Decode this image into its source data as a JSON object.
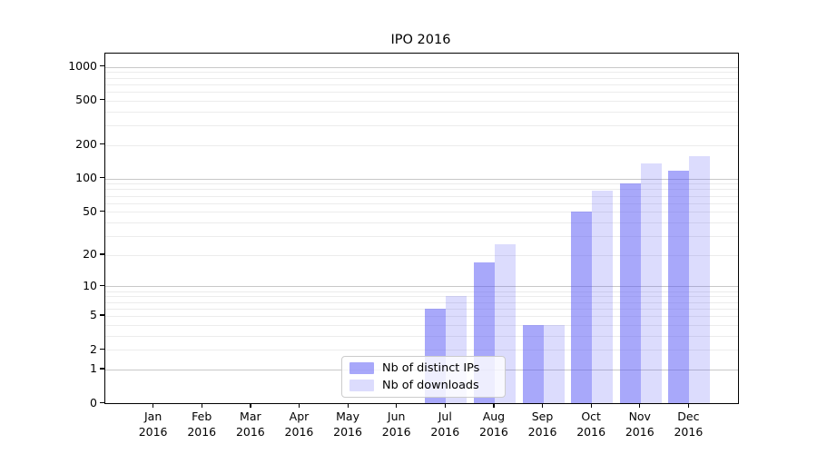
{
  "title": "IPO 2016",
  "chart_data": {
    "type": "bar",
    "title": "IPO 2016",
    "categories": [
      "Jan",
      "Feb",
      "Mar",
      "Apr",
      "May",
      "Jun",
      "Jul",
      "Aug",
      "Sep",
      "Oct",
      "Nov",
      "Dec"
    ],
    "category_year": "2016",
    "series": [
      {
        "name": "Nb of distinct IPs",
        "color": "rgba(81,81,245,0.50)",
        "values": [
          0,
          0,
          0,
          0,
          0,
          0,
          6,
          17,
          4,
          50,
          90,
          117
        ]
      },
      {
        "name": "Nb of downloads",
        "color": "rgba(81,81,245,0.20)",
        "values": [
          0,
          0,
          0,
          0,
          0,
          0,
          8,
          25,
          4,
          77,
          137,
          160
        ]
      }
    ],
    "xlabel": "",
    "ylabel": "",
    "y_scale": "symlog",
    "y_ticks": [
      0,
      1,
      2,
      5,
      10,
      20,
      50,
      100,
      200,
      500,
      1000
    ],
    "y_minor_gridlines": [
      3,
      4,
      6,
      7,
      8,
      9,
      30,
      40,
      60,
      70,
      80,
      90,
      300,
      400,
      600,
      700,
      800,
      900
    ],
    "y_major_gridlines": [
      1,
      10,
      100,
      1000
    ],
    "ylim": [
      0,
      1320
    ],
    "grid": true,
    "legend_position": "lower center"
  },
  "colors": {
    "bar_dark": "rgba(81,81,245,0.50)",
    "bar_light": "rgba(81,81,245,0.20)",
    "grid_major": "#c8c8c8",
    "grid_minor": "#ececec",
    "axis": "#000000",
    "legend_border": "#cccccc"
  }
}
